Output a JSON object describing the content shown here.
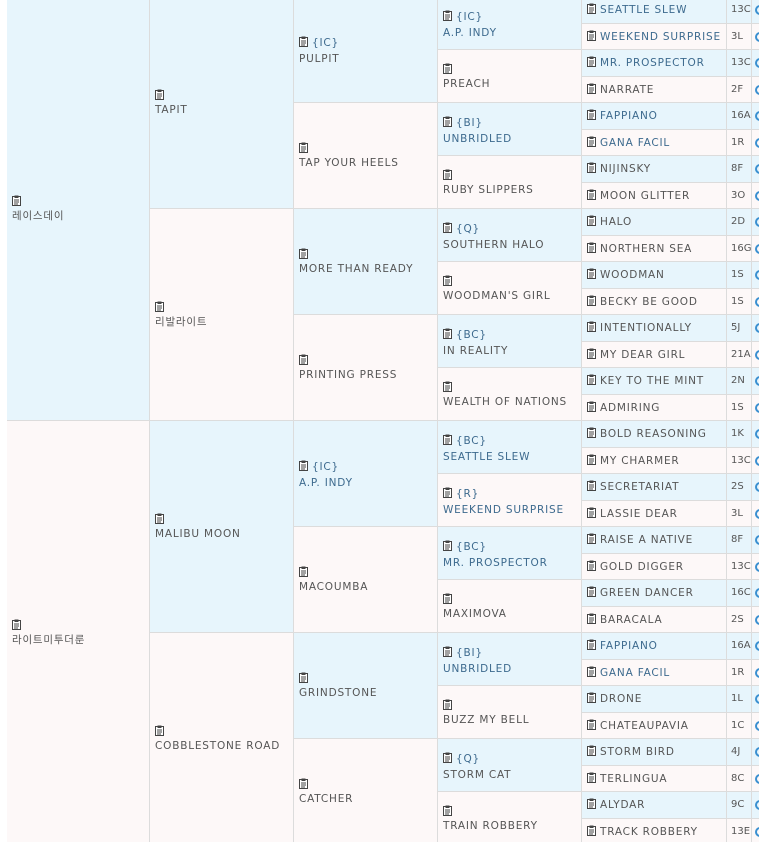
{
  "generations": [
    [
      {
        "name": "레이스데이"
      },
      {
        "name": "라이트미투더룬"
      }
    ],
    [
      {
        "name": "TAPIT"
      },
      {
        "name": "리발라이트"
      },
      {
        "name": "MALIBU MOON"
      },
      {
        "name": "COBBLESTONE ROAD"
      }
    ],
    [
      {
        "tag": "{IC}",
        "name": "PULPIT"
      },
      {
        "name": "TAP YOUR HEELS"
      },
      {
        "name": "MORE THAN READY"
      },
      {
        "name": "PRINTING PRESS"
      },
      {
        "tag": "{IC}",
        "name": "A.P. INDY",
        "link": true
      },
      {
        "name": "MACOUMBA"
      },
      {
        "name": "GRINDSTONE"
      },
      {
        "name": "CATCHER"
      }
    ],
    [
      {
        "tag": "{IC}",
        "name": "A.P. INDY",
        "link": true
      },
      {
        "name": "PREACH"
      },
      {
        "tag": "{BI}",
        "name": "UNBRIDLED",
        "link": true
      },
      {
        "name": "RUBY SLIPPERS"
      },
      {
        "tag": "{Q}",
        "name": "SOUTHERN HALO"
      },
      {
        "name": "WOODMAN'S GIRL"
      },
      {
        "tag": "{BC}",
        "name": "IN REALITY"
      },
      {
        "name": "WEALTH OF NATIONS"
      },
      {
        "tag": "{BC}",
        "name": "SEATTLE SLEW",
        "link": true
      },
      {
        "tag": "{R}",
        "name": "WEEKEND SURPRISE",
        "link": true
      },
      {
        "tag": "{BC}",
        "name": "MR. PROSPECTOR",
        "link": true
      },
      {
        "name": "MAXIMOVA"
      },
      {
        "tag": "{BI}",
        "name": "UNBRIDLED",
        "link": true
      },
      {
        "name": "BUZZ MY BELL"
      },
      {
        "tag": "{Q}",
        "name": "STORM CAT"
      },
      {
        "name": "TRAIN ROBBERY"
      }
    ]
  ],
  "ancestors": [
    {
      "name": "SEATTLE SLEW",
      "code": "13C",
      "link": true
    },
    {
      "name": "WEEKEND SURPRISE",
      "code": "3L",
      "link": true
    },
    {
      "name": "MR. PROSPECTOR",
      "code": "13C",
      "link": true
    },
    {
      "name": "NARRATE",
      "code": "2F"
    },
    {
      "name": "FAPPIANO",
      "code": "16A",
      "link": true
    },
    {
      "name": "GANA FACIL",
      "code": "1R",
      "link": true
    },
    {
      "name": "NIJINSKY",
      "code": "8F"
    },
    {
      "name": "MOON GLITTER",
      "code": "3O"
    },
    {
      "name": "HALO",
      "code": "2D"
    },
    {
      "name": "NORTHERN SEA",
      "code": "16G"
    },
    {
      "name": "WOODMAN",
      "code": "1S"
    },
    {
      "name": "BECKY BE GOOD",
      "code": "1S"
    },
    {
      "name": "INTENTIONALLY",
      "code": "5J"
    },
    {
      "name": "MY DEAR GIRL",
      "code": "21A"
    },
    {
      "name": "KEY TO THE MINT",
      "code": "2N"
    },
    {
      "name": "ADMIRING",
      "code": "1S"
    },
    {
      "name": "BOLD REASONING",
      "code": "1K"
    },
    {
      "name": "MY CHARMER",
      "code": "13C"
    },
    {
      "name": "SECRETARIAT",
      "code": "2S"
    },
    {
      "name": "LASSIE DEAR",
      "code": "3L"
    },
    {
      "name": "RAISE A NATIVE",
      "code": "8F"
    },
    {
      "name": "GOLD DIGGER",
      "code": "13C"
    },
    {
      "name": "GREEN DANCER",
      "code": "16C"
    },
    {
      "name": "BARACALA",
      "code": "2S"
    },
    {
      "name": "FAPPIANO",
      "code": "16A",
      "link": true
    },
    {
      "name": "GANA FACIL",
      "code": "1R",
      "link": true
    },
    {
      "name": "DRONE",
      "code": "1L"
    },
    {
      "name": "CHATEAUPAVIA",
      "code": "1C"
    },
    {
      "name": "STORM BIRD",
      "code": "4J"
    },
    {
      "name": "TERLINGUA",
      "code": "8C"
    },
    {
      "name": "ALYDAR",
      "code": "9C"
    },
    {
      "name": "TRACK ROBBERY",
      "code": "13E"
    }
  ]
}
